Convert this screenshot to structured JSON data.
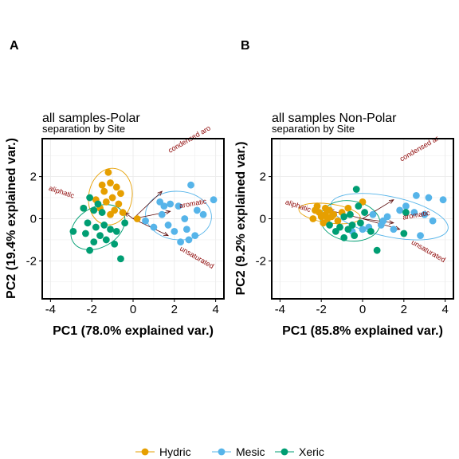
{
  "panels": [
    {
      "tag": "A",
      "title": "all samples-Polar",
      "subtitle": "separation by Site",
      "xlabel": "PC1 (78.0% explained var.)",
      "ylabel": "PC2 (19.4% explained var.)"
    },
    {
      "tag": "B",
      "title": "all samples Non-Polar",
      "subtitle": "separation by Site",
      "xlabel": "PC1 (85.8% explained var.)",
      "ylabel": "PC2 (9.2% explained var.)"
    }
  ],
  "legend": {
    "items": [
      {
        "label": "Hydric",
        "color": "#E69F00"
      },
      {
        "label": "Mesic",
        "color": "#56B4E9"
      },
      {
        "label": "Xeric",
        "color": "#009E73"
      }
    ]
  },
  "chart_data": [
    {
      "type": "scatter",
      "title": "all samples-Polar",
      "subtitle": "separation by Site",
      "xlabel": "PC1 (78.0% explained var.)",
      "ylabel": "PC2 (19.4% explained var.)",
      "xlim": [
        -4.4,
        4.4
      ],
      "ylim": [
        -3.8,
        3.8
      ],
      "xticks": [
        -4,
        -2,
        0,
        2,
        4
      ],
      "yticks": [
        -2,
        0,
        2
      ],
      "grid": true,
      "series": [
        {
          "name": "Hydric",
          "color": "#E69F00",
          "points": [
            [
              -1.2,
              2.2
            ],
            [
              -1.5,
              1.6
            ],
            [
              -1.1,
              1.7
            ],
            [
              -0.8,
              1.5
            ],
            [
              -1.4,
              1.3
            ],
            [
              -0.6,
              1.2
            ],
            [
              -1.0,
              1.0
            ],
            [
              -1.8,
              0.9
            ],
            [
              -1.3,
              0.8
            ],
            [
              -0.7,
              0.7
            ],
            [
              -1.6,
              0.5
            ],
            [
              -0.9,
              0.4
            ],
            [
              -0.5,
              0.3
            ],
            [
              -1.1,
              0.2
            ],
            [
              0.2,
              0.0
            ],
            [
              -2.4,
              0.5
            ]
          ],
          "ellipse": {
            "cx": -1.1,
            "cy": 1.05,
            "rx": 1.05,
            "ry": 1.35,
            "angle": -10
          }
        },
        {
          "name": "Mesic",
          "color": "#56B4E9",
          "points": [
            [
              2.8,
              1.6
            ],
            [
              3.9,
              0.9
            ],
            [
              1.3,
              0.8
            ],
            [
              1.5,
              0.6
            ],
            [
              1.8,
              0.7
            ],
            [
              2.2,
              0.6
            ],
            [
              3.1,
              0.4
            ],
            [
              1.4,
              0.2
            ],
            [
              2.5,
              0.0
            ],
            [
              1.7,
              -0.3
            ],
            [
              1.0,
              -0.4
            ],
            [
              2.6,
              -0.5
            ],
            [
              2.0,
              -0.6
            ],
            [
              3.0,
              -0.8
            ],
            [
              2.3,
              -1.1
            ],
            [
              2.7,
              -1.0
            ],
            [
              0.6,
              -0.1
            ],
            [
              3.4,
              0.2
            ]
          ],
          "ellipse": {
            "cx": 2.2,
            "cy": 0.15,
            "rx": 1.6,
            "ry": 1.15,
            "angle": -5
          }
        },
        {
          "name": "Xeric",
          "color": "#009E73",
          "points": [
            [
              -2.1,
              1.0
            ],
            [
              -2.4,
              0.5
            ],
            [
              -1.9,
              0.4
            ],
            [
              -1.7,
              0.7
            ],
            [
              -1.5,
              0.3
            ],
            [
              -2.2,
              -0.2
            ],
            [
              -1.8,
              -0.4
            ],
            [
              -1.4,
              -0.3
            ],
            [
              -2.9,
              -0.6
            ],
            [
              -2.3,
              -0.7
            ],
            [
              -1.6,
              -0.8
            ],
            [
              -1.1,
              -0.5
            ],
            [
              -0.8,
              -0.6
            ],
            [
              -1.9,
              -1.1
            ],
            [
              -1.3,
              -1.0
            ],
            [
              -0.9,
              -1.2
            ],
            [
              -2.1,
              -1.5
            ],
            [
              -0.6,
              -1.9
            ],
            [
              -0.4,
              -0.2
            ]
          ],
          "ellipse": {
            "cx": -1.7,
            "cy": -0.4,
            "rx": 1.4,
            "ry": 0.95,
            "angle": 30
          }
        }
      ],
      "loadings": [
        {
          "label": "aliphatic",
          "x": -0.4,
          "y": 0.3
        },
        {
          "label": "condensed aro",
          "x": 1.4,
          "y": 1.3
        },
        {
          "label": "aromatic",
          "x": 1.8,
          "y": 0.35
        },
        {
          "label": "unsaturated",
          "x": 1.7,
          "y": -0.8
        }
      ]
    },
    {
      "type": "scatter",
      "title": "all samples Non-Polar",
      "subtitle": "separation by Site",
      "xlabel": "PC1 (85.8% explained var.)",
      "ylabel": "PC2 (9.2% explained var.)",
      "xlim": [
        -4.4,
        4.4
      ],
      "ylim": [
        -3.8,
        3.8
      ],
      "xticks": [
        -4,
        -2,
        0,
        2,
        4
      ],
      "yticks": [
        -2,
        0,
        2
      ],
      "grid": true,
      "series": [
        {
          "name": "Hydric",
          "color": "#E69F00",
          "points": [
            [
              -2.3,
              0.4
            ],
            [
              -2.1,
              0.3
            ],
            [
              -2.0,
              0.1
            ],
            [
              -1.8,
              0.2
            ],
            [
              -1.7,
              0.0
            ],
            [
              -2.2,
              0.6
            ],
            [
              -1.9,
              -0.2
            ],
            [
              -1.5,
              0.1
            ],
            [
              -2.4,
              0.0
            ],
            [
              -1.6,
              0.4
            ],
            [
              -1.4,
              0.2
            ],
            [
              -1.2,
              -0.1
            ],
            [
              0.0,
              0.8
            ],
            [
              -0.7,
              0.5
            ],
            [
              -1.0,
              0.3
            ],
            [
              -1.8,
              0.5
            ]
          ],
          "ellipse": {
            "cx": -1.6,
            "cy": 0.25,
            "rx": 1.5,
            "ry": 0.45,
            "angle": -8
          }
        },
        {
          "name": "Mesic",
          "color": "#56B4E9",
          "points": [
            [
              2.6,
              1.1
            ],
            [
              3.2,
              1.0
            ],
            [
              3.9,
              0.9
            ],
            [
              1.8,
              0.4
            ],
            [
              2.1,
              0.6
            ],
            [
              2.5,
              0.3
            ],
            [
              3.0,
              0.2
            ],
            [
              3.4,
              -0.1
            ],
            [
              1.2,
              0.1
            ],
            [
              0.9,
              -0.3
            ],
            [
              1.5,
              -0.5
            ],
            [
              0.3,
              -0.4
            ],
            [
              0.0,
              -0.5
            ],
            [
              -0.5,
              -0.6
            ],
            [
              2.8,
              -0.8
            ],
            [
              1.0,
              -0.1
            ],
            [
              0.5,
              0.2
            ]
          ],
          "ellipse": {
            "cx": 1.3,
            "cy": 0.1,
            "rx": 2.9,
            "ry": 0.95,
            "angle": -12
          }
        },
        {
          "name": "Xeric",
          "color": "#009E73",
          "points": [
            [
              -0.3,
              1.4
            ],
            [
              -0.2,
              0.6
            ],
            [
              0.1,
              0.3
            ],
            [
              -0.6,
              0.2
            ],
            [
              -0.9,
              0.1
            ],
            [
              -0.1,
              -0.2
            ],
            [
              -1.1,
              -0.4
            ],
            [
              -0.7,
              -0.5
            ],
            [
              -0.4,
              -0.8
            ],
            [
              -0.9,
              -0.9
            ],
            [
              -1.3,
              -0.6
            ],
            [
              0.4,
              -0.6
            ],
            [
              0.7,
              -1.5
            ],
            [
              2.0,
              -0.7
            ],
            [
              2.1,
              0.3
            ],
            [
              -1.6,
              -0.3
            ],
            [
              -0.5,
              -0.3
            ]
          ],
          "ellipse": {
            "cx": -0.6,
            "cy": -0.1,
            "rx": 1.45,
            "ry": 0.95,
            "angle": -8
          }
        }
      ],
      "loadings": [
        {
          "label": "aliphatic",
          "x": -1.6,
          "y": 0.4
        },
        {
          "label": "condensed ar",
          "x": 1.5,
          "y": 0.9
        },
        {
          "label": "aromatic",
          "x": 1.5,
          "y": -0.2
        },
        {
          "label": "unsaturated",
          "x": 1.8,
          "y": -0.5
        }
      ]
    }
  ]
}
